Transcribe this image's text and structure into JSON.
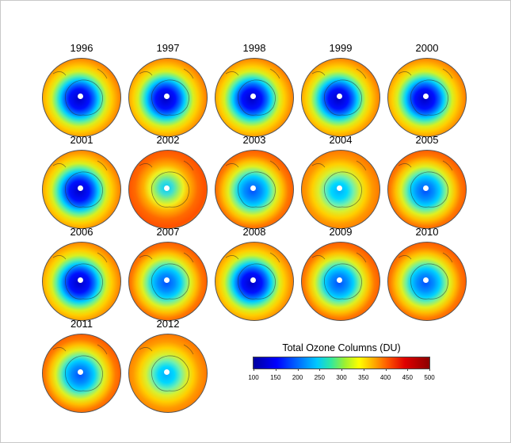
{
  "panels": [
    {
      "year": "1996",
      "hole": "dark"
    },
    {
      "year": "1997",
      "hole": "dark"
    },
    {
      "year": "1998",
      "hole": "dark"
    },
    {
      "year": "1999",
      "hole": "dark"
    },
    {
      "year": "2000",
      "hole": "dark"
    },
    {
      "year": "2001",
      "hole": "dark"
    },
    {
      "year": "2002",
      "hole": "split"
    },
    {
      "year": "2003",
      "hole": "medium"
    },
    {
      "year": "2004",
      "hole": "light"
    },
    {
      "year": "2005",
      "hole": "medium"
    },
    {
      "year": "2006",
      "hole": "dark"
    },
    {
      "year": "2007",
      "hole": "medium"
    },
    {
      "year": "2008",
      "hole": "dark"
    },
    {
      "year": "2009",
      "hole": "medium"
    },
    {
      "year": "2010",
      "hole": "medium"
    },
    {
      "year": "2011",
      "hole": "medium"
    },
    {
      "year": "2012",
      "hole": "light"
    }
  ],
  "colorbar": {
    "title": "Total Ozone Columns (DU)",
    "ticks": [
      "100",
      "150",
      "200",
      "250",
      "300",
      "350",
      "400",
      "450",
      "500"
    ],
    "colors": [
      "#0000a0",
      "#0000ff",
      "#00c8ff",
      "#ffff00",
      "#ff5a00",
      "#8b0000"
    ]
  }
}
